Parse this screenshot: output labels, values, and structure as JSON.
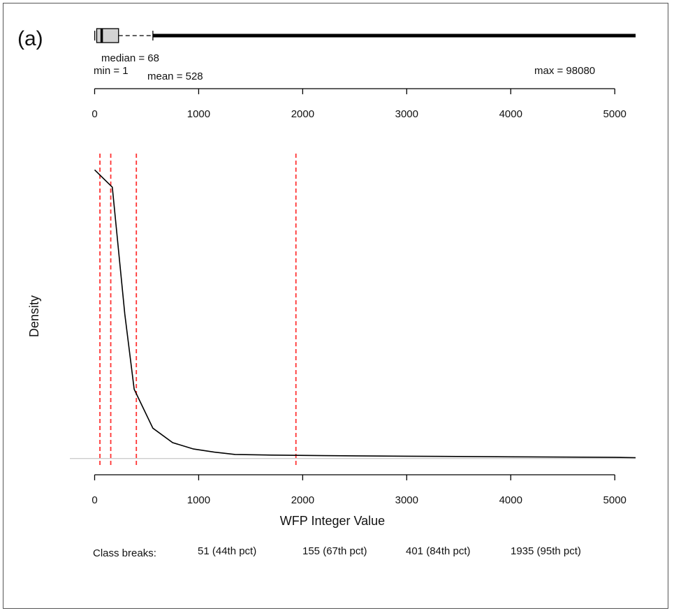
{
  "panel_label": "(a)",
  "boxplot": {
    "median_label": "median = 68",
    "min_label": "min = 1",
    "mean_label": "mean = 528",
    "max_label": "max = 98080",
    "min": 1,
    "q1": 20,
    "median": 68,
    "q3": 230,
    "whisker_end": 560,
    "max": 98080
  },
  "chart_data": {
    "type": "line",
    "title": "",
    "xlabel": "WFP Integer Value",
    "ylabel": "Density",
    "xlim": [
      -10,
      5200
    ],
    "ylim": [
      -0.02,
      1.02
    ],
    "x_ticks": [
      0,
      1000,
      2000,
      3000,
      4000,
      5000
    ],
    "x_tick_labels": [
      "0",
      "1000",
      "2000",
      "3000",
      "4000",
      "5000"
    ],
    "grid": false,
    "series": [
      {
        "x": [
          0,
          170,
          290,
          380,
          560,
          750,
          950,
          1150,
          1350,
          1700,
          2200,
          3000,
          4000,
          5000,
          5200
        ],
        "y": [
          1.0,
          0.94,
          0.5,
          0.24,
          0.105,
          0.055,
          0.033,
          0.022,
          0.014,
          0.012,
          0.01,
          0.008,
          0.006,
          0.004,
          0.003
        ]
      }
    ],
    "reference_lines": [
      {
        "x": 51,
        "label": "51 (44th pct)"
      },
      {
        "x": 155,
        "label": "155 (67th pct)"
      },
      {
        "x": 401,
        "label": "401 (84th pct)"
      },
      {
        "x": 1935,
        "label": "1935 (95th pct)"
      }
    ],
    "annotation": "Class breaks:",
    "line_color": "#000000",
    "reference_color": "#ff3333",
    "baseline_color": "#bbbbbb"
  }
}
